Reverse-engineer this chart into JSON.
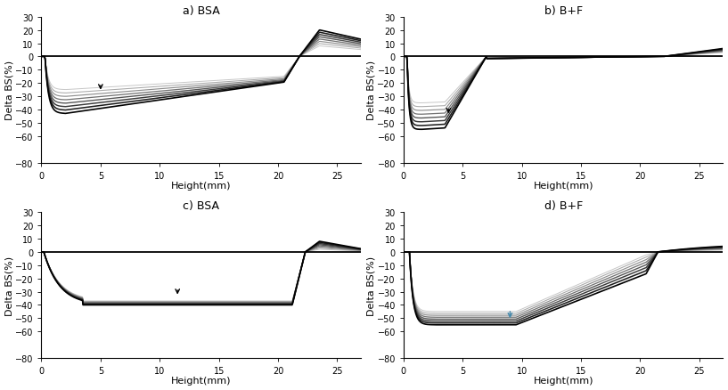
{
  "titles": [
    "a) BSA",
    "b) B+F",
    "c) BSA",
    "d) B+F"
  ],
  "xlabel": "Height(mm)",
  "ylabel": "Delta BS(%)",
  "xlim": [
    0,
    27
  ],
  "ylim": [
    -80,
    30
  ],
  "yticks": [
    -80,
    -60,
    -50,
    -40,
    -30,
    -20,
    -10,
    0,
    10,
    20,
    30
  ],
  "xticks": [
    0,
    5,
    10,
    15,
    20,
    25
  ],
  "n_curves": 8,
  "background_color": "#ffffff",
  "arrows_a": [
    5.0,
    -20,
    5.0,
    -27
  ],
  "arrows_b": [
    3.8,
    -38,
    3.8,
    -45
  ],
  "arrows_c": [
    11.5,
    -27,
    11.5,
    -34
  ],
  "arrows_d": [
    9.0,
    -43,
    9.0,
    -52
  ],
  "arrow_color_abc": "#000000",
  "arrow_color_d": "#4488aa"
}
